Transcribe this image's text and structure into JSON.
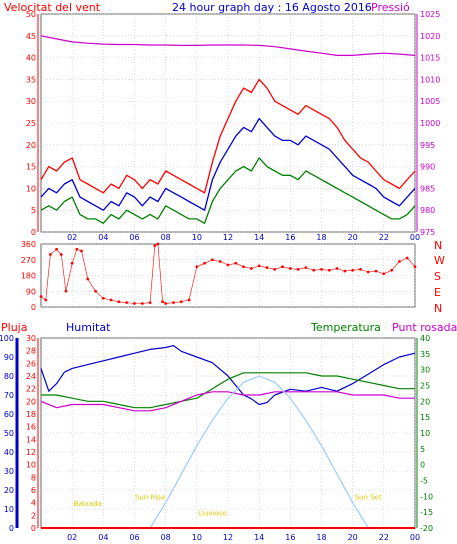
{
  "header": {
    "left_title": "Velocitat del vent",
    "center_title": "24 hour graph day : 16 Agosto 2016",
    "right_title": "Pressió"
  },
  "colors": {
    "red": "#ff0000",
    "green": "#008000",
    "blue": "#0000cc",
    "magenta": "#cc00cc",
    "lightblue": "#99ccff",
    "yellow": "#ffff00",
    "frame": "#666666",
    "grid": "#bbbbbb"
  },
  "chart_data": [
    {
      "type": "line",
      "id": "wind",
      "y_left_ticks": [
        0,
        5,
        10,
        15,
        20,
        25,
        30,
        35,
        40,
        45,
        50
      ],
      "y_left_range": [
        0,
        50
      ],
      "y_right_ticks": [
        975,
        980,
        985,
        990,
        995,
        1000,
        1005,
        1010,
        1015,
        1020,
        1025
      ],
      "y_right_range": [
        975,
        1025
      ],
      "x_ticks": [
        "02",
        "04",
        "06",
        "08",
        "10",
        "12",
        "14",
        "16",
        "18",
        "20",
        "22",
        "00"
      ],
      "series": [
        {
          "role": "gust",
          "color": "red",
          "hours": [
            0,
            0.5,
            1,
            1.5,
            2,
            2.5,
            3,
            3.5,
            4,
            4.5,
            5,
            5.5,
            6,
            6.5,
            7,
            7.5,
            8,
            8.5,
            9,
            9.5,
            10,
            10.5,
            11,
            11.5,
            12,
            12.5,
            13,
            13.5,
            14,
            14.5,
            15,
            15.5,
            16,
            16.5,
            17,
            17.5,
            18,
            18.5,
            19,
            19.5,
            20,
            20.5,
            21,
            21.5,
            22,
            22.5,
            23,
            23.5,
            24
          ],
          "values": [
            12,
            15,
            14,
            16,
            17,
            12,
            11,
            10,
            9,
            11,
            10,
            13,
            12,
            10,
            12,
            11,
            14,
            13,
            12,
            11,
            10,
            9,
            16,
            22,
            26,
            30,
            33,
            32,
            35,
            33,
            30,
            29,
            28,
            27,
            29,
            28,
            27,
            26,
            24,
            21,
            19,
            17,
            16,
            14,
            12,
            11,
            10,
            12,
            14
          ]
        },
        {
          "role": "mean",
          "color": "blue",
          "hours": [
            0,
            0.5,
            1,
            1.5,
            2,
            2.5,
            3,
            3.5,
            4,
            4.5,
            5,
            5.5,
            6,
            6.5,
            7,
            7.5,
            8,
            8.5,
            9,
            9.5,
            10,
            10.5,
            11,
            11.5,
            12,
            12.5,
            13,
            13.5,
            14,
            14.5,
            15,
            15.5,
            16,
            16.5,
            17,
            17.5,
            18,
            18.5,
            19,
            19.5,
            20,
            20.5,
            21,
            21.5,
            22,
            22.5,
            23,
            23.5,
            24
          ],
          "values": [
            8,
            10,
            9,
            11,
            12,
            8,
            7,
            6,
            5,
            7,
            6,
            9,
            8,
            6,
            8,
            7,
            10,
            9,
            8,
            7,
            6,
            5,
            12,
            16,
            19,
            22,
            24,
            23,
            26,
            24,
            22,
            21,
            21,
            20,
            22,
            21,
            20,
            19,
            17,
            15,
            13,
            12,
            11,
            10,
            8,
            7,
            6,
            8,
            10
          ]
        },
        {
          "role": "min",
          "color": "green",
          "hours": [
            0,
            0.5,
            1,
            1.5,
            2,
            2.5,
            3,
            3.5,
            4,
            4.5,
            5,
            5.5,
            6,
            6.5,
            7,
            7.5,
            8,
            8.5,
            9,
            9.5,
            10,
            10.5,
            11,
            11.5,
            12,
            12.5,
            13,
            13.5,
            14,
            14.5,
            15,
            15.5,
            16,
            16.5,
            17,
            17.5,
            18,
            18.5,
            19,
            19.5,
            20,
            20.5,
            21,
            21.5,
            22,
            22.5,
            23,
            23.5,
            24
          ],
          "values": [
            5,
            6,
            5,
            7,
            8,
            4,
            3,
            3,
            2,
            4,
            3,
            5,
            4,
            3,
            4,
            3,
            6,
            5,
            4,
            3,
            3,
            2,
            7,
            10,
            12,
            14,
            15,
            14,
            17,
            15,
            14,
            13,
            13,
            12,
            14,
            13,
            12,
            11,
            10,
            9,
            8,
            7,
            6,
            5,
            4,
            3,
            3,
            4,
            6
          ]
        },
        {
          "role": "pressure",
          "color": "magenta",
          "axis": "right",
          "hours": [
            0,
            1,
            2,
            3,
            4,
            5,
            6,
            7,
            8,
            9,
            10,
            11,
            12,
            13,
            14,
            15,
            16,
            17,
            18,
            19,
            20,
            21,
            22,
            23,
            24
          ],
          "values": [
            1020,
            1019.3,
            1018.6,
            1018.3,
            1018.1,
            1018,
            1018,
            1017.9,
            1017.9,
            1017.8,
            1017.8,
            1017.9,
            1017.9,
            1017.9,
            1017.8,
            1017.5,
            1017,
            1016.5,
            1016,
            1015.5,
            1015.5,
            1015.8,
            1016,
            1015.8,
            1015.5
          ]
        }
      ]
    },
    {
      "type": "scatter",
      "id": "direction",
      "y_ticks": [
        0,
        90,
        180,
        270,
        360
      ],
      "y_range": [
        0,
        360
      ],
      "compass_labels": [
        "N",
        "W",
        "S",
        "E",
        "N"
      ],
      "series": [
        {
          "color": "red",
          "hours": [
            0,
            0.3,
            0.6,
            1,
            1.3,
            1.6,
            2,
            2.3,
            2.6,
            3,
            3.5,
            4,
            4.5,
            5,
            5.5,
            6,
            6.5,
            7,
            7.3,
            7.5,
            7.8,
            8,
            8.5,
            9,
            9.5,
            10,
            10.5,
            11,
            11.5,
            12,
            12.5,
            13,
            13.5,
            14,
            14.5,
            15,
            15.5,
            16,
            16.5,
            17,
            17.5,
            18,
            18.5,
            19,
            19.5,
            20,
            20.5,
            21,
            21.5,
            22,
            22.5,
            23,
            23.5,
            24
          ],
          "values": [
            60,
            40,
            300,
            330,
            300,
            90,
            250,
            330,
            320,
            160,
            90,
            50,
            40,
            30,
            25,
            20,
            20,
            25,
            350,
            360,
            30,
            20,
            25,
            30,
            40,
            230,
            250,
            270,
            260,
            240,
            250,
            230,
            220,
            235,
            225,
            215,
            230,
            220,
            215,
            225,
            210,
            215,
            210,
            220,
            205,
            210,
            215,
            200,
            205,
            190,
            210,
            260,
            280,
            230
          ]
        }
      ]
    },
    {
      "type": "line",
      "id": "humidity-temp",
      "labels": {
        "left_red": "Pluja",
        "left_blue": "Humitat",
        "green": "Temperatura",
        "magenta": "Punt rosada"
      },
      "y_humidity_ticks": [
        0,
        10,
        20,
        30,
        40,
        50,
        60,
        70,
        80,
        90,
        100
      ],
      "y_humidity_range": [
        0,
        100
      ],
      "y_rain_ticks": [
        0,
        2,
        4,
        6,
        8,
        10,
        12,
        14,
        16,
        18,
        20,
        22,
        24,
        26,
        28,
        30
      ],
      "y_rain_range": [
        0,
        30
      ],
      "y_temp_ticks": [
        -20,
        -15,
        -10,
        -5,
        0,
        5,
        10,
        15,
        20,
        25,
        30,
        35,
        40
      ],
      "y_temp_range": [
        -20,
        40
      ],
      "series": [
        {
          "role": "humidity",
          "color": "blue",
          "axis": "humidity",
          "hours": [
            0,
            0.5,
            1,
            1.5,
            2,
            3,
            4,
            5,
            6,
            7,
            8,
            8.5,
            9,
            10,
            11,
            12,
            12.5,
            13,
            13.5,
            14,
            14.5,
            15,
            16,
            17,
            18,
            19,
            20,
            21,
            22,
            23,
            24
          ],
          "values": [
            84,
            72,
            76,
            82,
            84,
            86,
            88,
            90,
            92,
            94,
            95,
            96,
            93,
            90,
            87,
            80,
            75,
            70,
            68,
            65,
            66,
            70,
            73,
            72,
            74,
            72,
            76,
            81,
            86,
            90,
            92
          ]
        },
        {
          "role": "temperature",
          "color": "green",
          "axis": "temp",
          "hours": [
            0,
            1,
            2,
            3,
            4,
            5,
            6,
            7,
            8,
            9,
            10,
            11,
            12,
            13,
            14,
            15,
            16,
            17,
            18,
            19,
            20,
            21,
            22,
            23,
            24
          ],
          "values": [
            22,
            22,
            21,
            20,
            20,
            19,
            18,
            18,
            19,
            20,
            21,
            24,
            27,
            29,
            29,
            29,
            29,
            29,
            28,
            28,
            27,
            26,
            25,
            24,
            24
          ]
        },
        {
          "role": "dewpoint",
          "color": "magenta",
          "axis": "temp",
          "hours": [
            0,
            1,
            2,
            3,
            4,
            5,
            6,
            7,
            8,
            9,
            10,
            11,
            12,
            13,
            14,
            15,
            16,
            17,
            18,
            19,
            20,
            21,
            22,
            23,
            24
          ],
          "values": [
            20,
            18,
            19,
            19,
            19,
            18,
            17,
            17,
            18,
            20,
            22,
            23,
            23,
            22,
            22,
            23,
            23,
            23,
            23,
            23,
            22,
            22,
            22,
            21,
            21
          ]
        },
        {
          "role": "solar",
          "color": "lightblue",
          "axis": "temp",
          "hours": [
            7,
            8,
            9,
            10,
            11,
            12,
            13,
            14,
            15,
            16,
            17,
            18,
            19,
            20,
            21
          ],
          "values": [
            -20,
            -12,
            -3,
            6,
            14,
            21,
            26,
            28,
            26,
            21,
            14,
            6,
            -3,
            -12,
            -20
          ]
        },
        {
          "role": "rain",
          "color": "red",
          "axis": "rain",
          "hours": [
            0,
            24
          ],
          "values": [
            0,
            0
          ]
        }
      ],
      "annotations": [
        {
          "text": "Baixada",
          "hour": 3,
          "temp": -13
        },
        {
          "text": "Sun Rise",
          "hour": 7,
          "temp": -11
        },
        {
          "text": "Lluvioso",
          "hour": 11,
          "temp": -16
        },
        {
          "text": "Sun Set",
          "hour": 21,
          "temp": -11
        }
      ]
    }
  ]
}
